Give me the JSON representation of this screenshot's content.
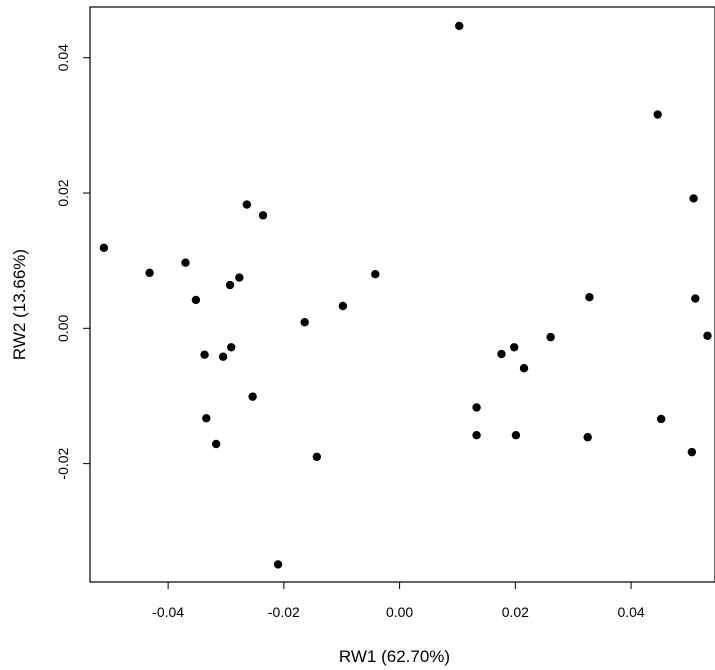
{
  "chart_data": {
    "type": "scatter",
    "title": "",
    "xlabel": "RW1 (62.70%)",
    "ylabel": "RW2 (13.66%)",
    "xlim": [
      -0.0535,
      0.0545
    ],
    "ylim": [
      -0.0375,
      0.0475
    ],
    "xticks": [
      {
        "value": -0.04,
        "label": "-0.04"
      },
      {
        "value": -0.02,
        "label": "-0.02"
      },
      {
        "value": 0.0,
        "label": "0.00"
      },
      {
        "value": 0.02,
        "label": "0.02"
      },
      {
        "value": 0.04,
        "label": "0.04"
      }
    ],
    "yticks": [
      {
        "value": -0.02,
        "label": "-0.02"
      },
      {
        "value": 0.0,
        "label": "0.00"
      },
      {
        "value": 0.02,
        "label": "0.02"
      },
      {
        "value": 0.04,
        "label": "0.04"
      }
    ],
    "grid": false,
    "marker_color": "#000000",
    "points": [
      {
        "x": -0.0511,
        "y": 0.0119
      },
      {
        "x": -0.0432,
        "y": 0.0082
      },
      {
        "x": -0.037,
        "y": 0.0097
      },
      {
        "x": -0.0352,
        "y": 0.0042
      },
      {
        "x": -0.0337,
        "y": -0.0039
      },
      {
        "x": -0.0334,
        "y": -0.0133
      },
      {
        "x": -0.0317,
        "y": -0.0171
      },
      {
        "x": -0.0305,
        "y": -0.0042
      },
      {
        "x": -0.0293,
        "y": 0.0064
      },
      {
        "x": -0.0291,
        "y": -0.0028
      },
      {
        "x": -0.0277,
        "y": 0.0075
      },
      {
        "x": -0.0264,
        "y": 0.0183
      },
      {
        "x": -0.0254,
        "y": -0.0101
      },
      {
        "x": -0.0236,
        "y": 0.0167
      },
      {
        "x": -0.021,
        "y": -0.0349
      },
      {
        "x": -0.0164,
        "y": 0.0009
      },
      {
        "x": -0.0143,
        "y": -0.019
      },
      {
        "x": -0.0098,
        "y": 0.0033
      },
      {
        "x": -0.0042,
        "y": 0.008
      },
      {
        "x": 0.0103,
        "y": 0.0447
      },
      {
        "x": 0.0133,
        "y": -0.0117
      },
      {
        "x": 0.0133,
        "y": -0.0158
      },
      {
        "x": 0.0176,
        "y": -0.0038
      },
      {
        "x": 0.0198,
        "y": -0.0028
      },
      {
        "x": 0.0201,
        "y": -0.0158
      },
      {
        "x": 0.0215,
        "y": -0.0059
      },
      {
        "x": 0.0261,
        "y": -0.0013
      },
      {
        "x": 0.0325,
        "y": -0.0161
      },
      {
        "x": 0.0328,
        "y": 0.0046
      },
      {
        "x": 0.0446,
        "y": 0.0316
      },
      {
        "x": 0.0452,
        "y": -0.0134
      },
      {
        "x": 0.0505,
        "y": -0.0183
      },
      {
        "x": 0.0508,
        "y": 0.0192
      },
      {
        "x": 0.0511,
        "y": 0.0044
      },
      {
        "x": 0.0532,
        "y": -0.0011
      }
    ]
  }
}
